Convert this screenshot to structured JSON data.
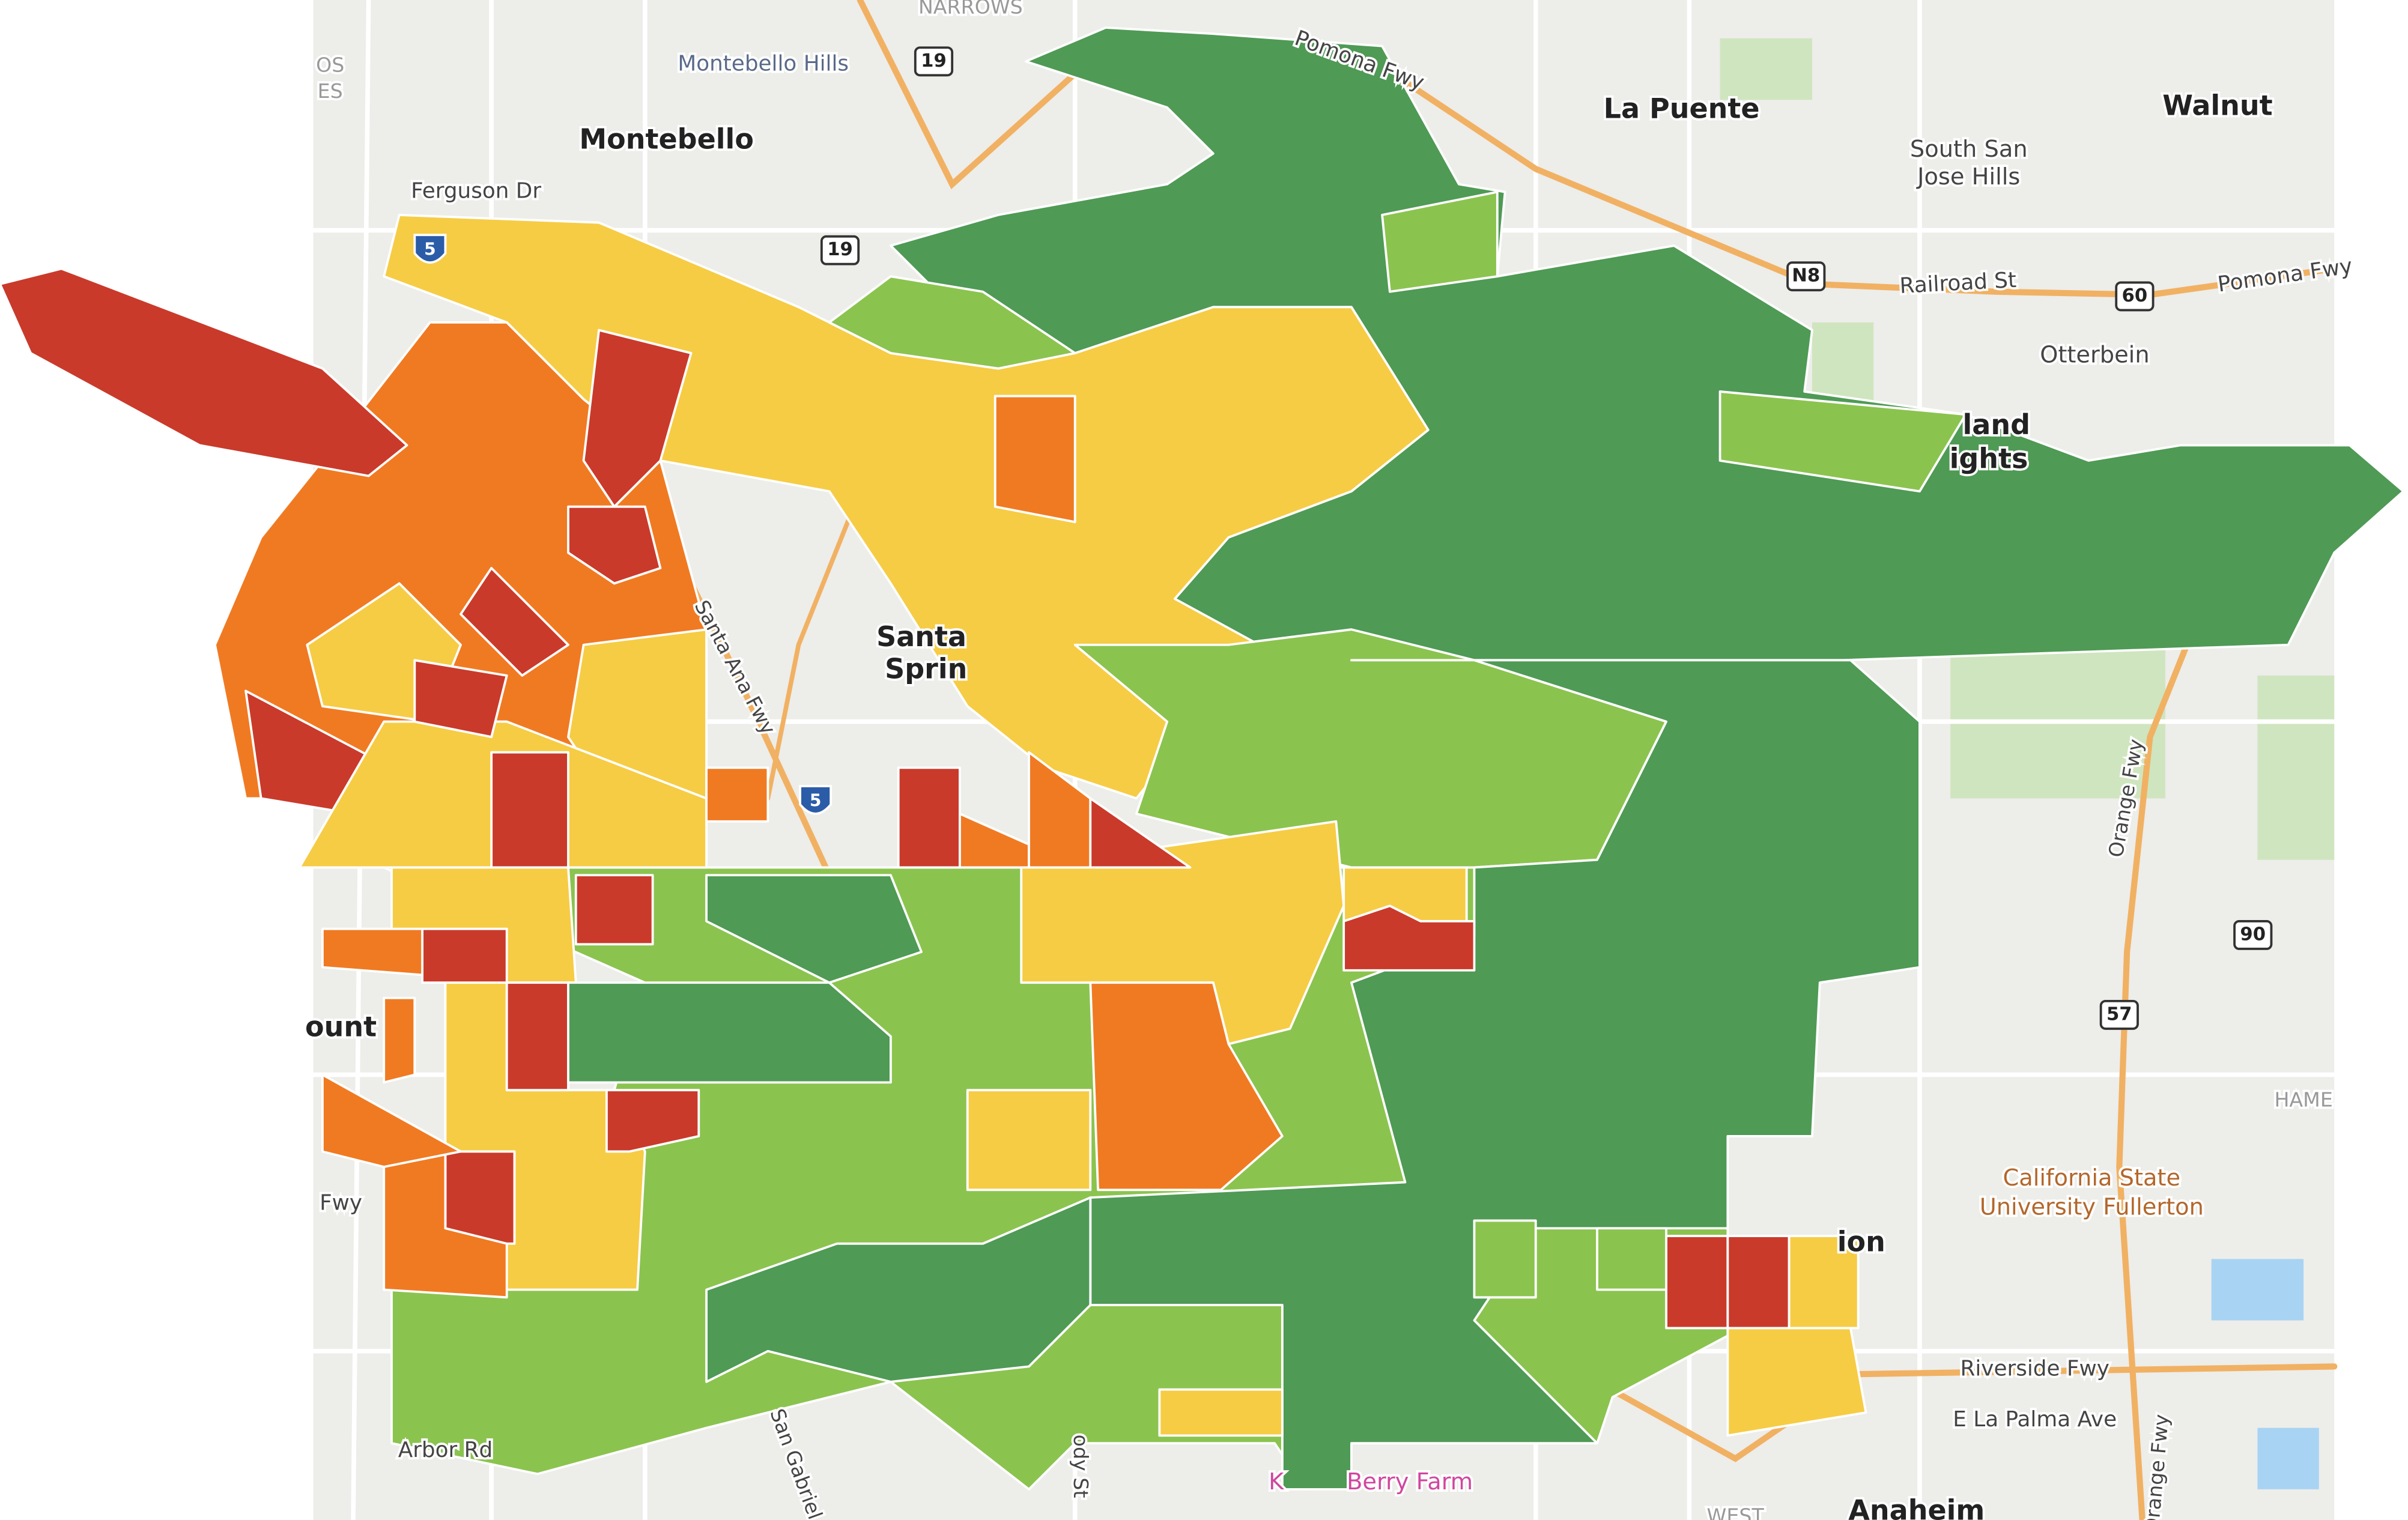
{
  "labels": [
    "NARROWS",
    "Montebello Hills",
    "19",
    "Montebello",
    "Ferguson Dr",
    "5",
    "19",
    "Pomona Fwy",
    "La Puente",
    "Walnut",
    "South San",
    "Jose Hills",
    "N8",
    "Railroad St",
    "60",
    "Pomona Fwy",
    "Otterbein",
    "land",
    "ights",
    "Santa",
    "Sprin",
    "Santa Ana Fwy",
    "5",
    "Orange Fwy",
    "90",
    "57",
    "HAME",
    "California State",
    "University Fullerton",
    "Riverside Fwy",
    "E La Palma Ave",
    "Anaheim",
    "WEST",
    "Arbor Rd",
    "San Gabriel R",
    "ody St",
    "K",
    "Berry Farm",
    "ount",
    "Fwy",
    "OS",
    "ES",
    "ion",
    "Orange Fwy"
  ]
}
